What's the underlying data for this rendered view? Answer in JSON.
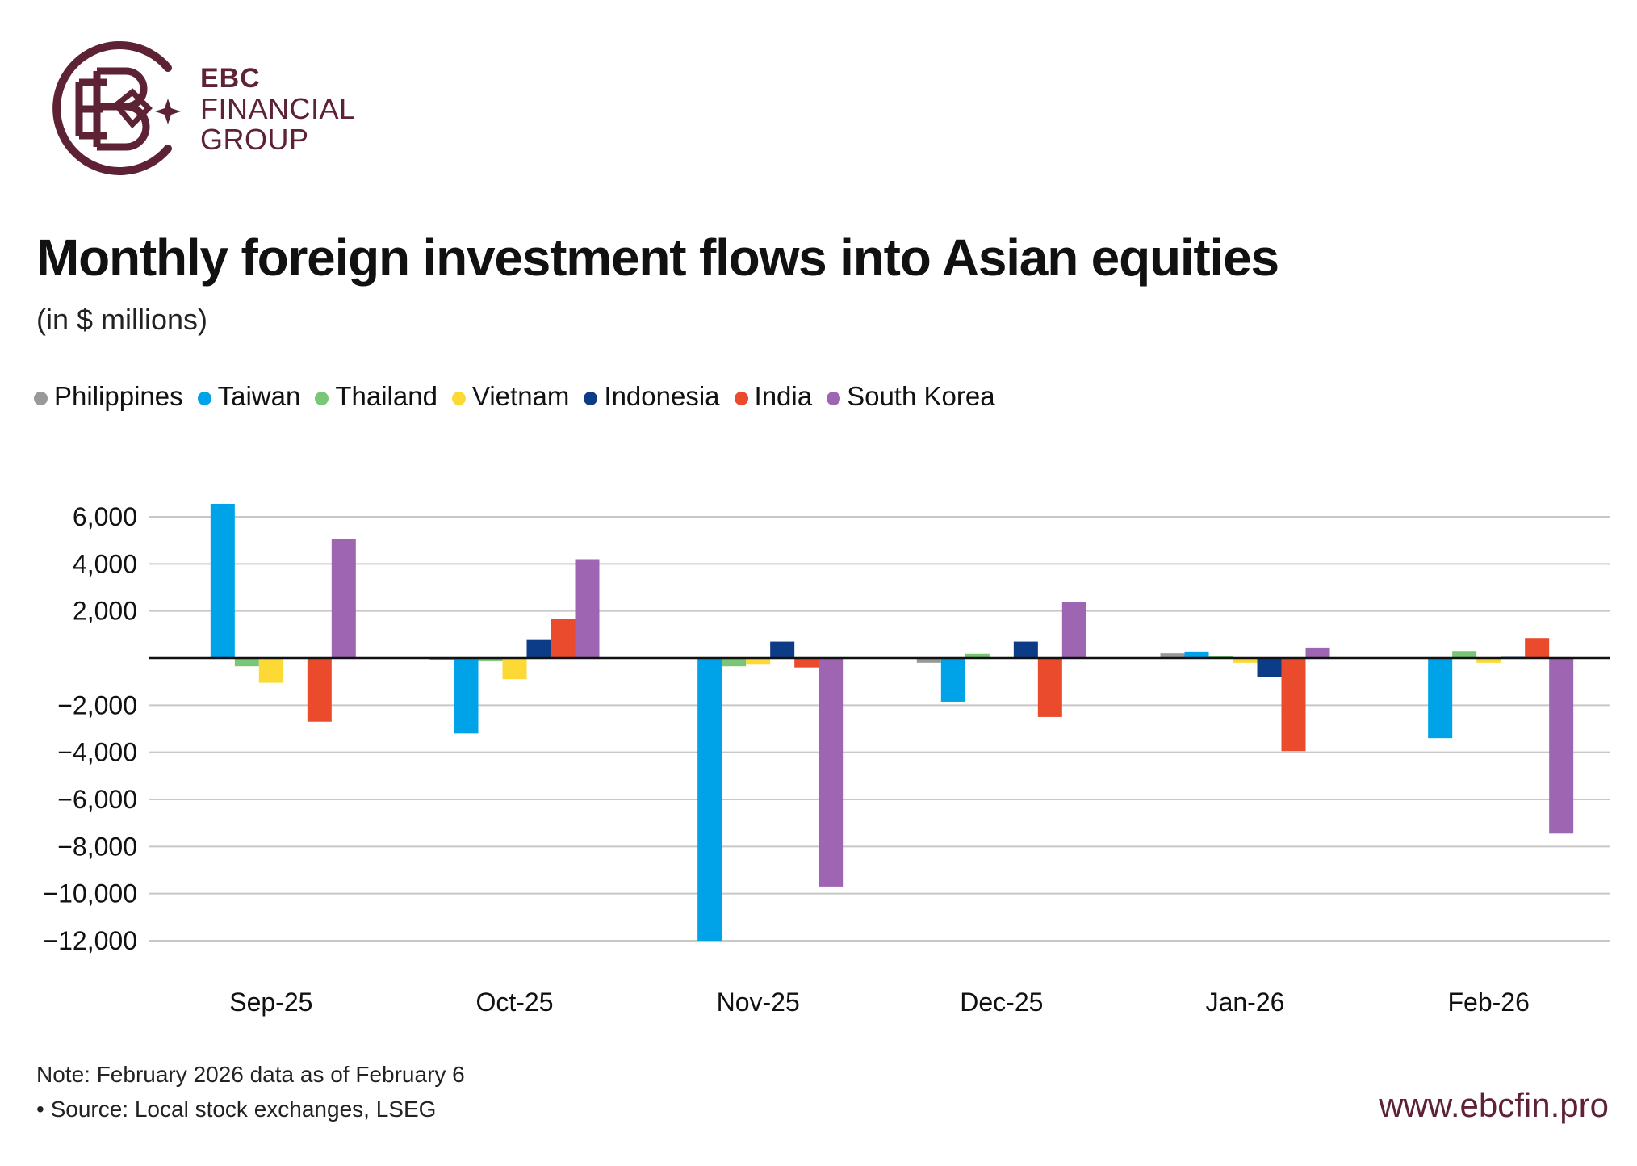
{
  "brand": {
    "line1": "EBC",
    "line2": "FINANCIAL",
    "line3": "GROUP",
    "color": "#5e2235",
    "logo_icon": "ebc-monogram-icon"
  },
  "title": "Monthly foreign investment flows into Asian equities",
  "subtitle": "(in $ millions)",
  "footer": {
    "note": "Note: February 2026 data as of February 6",
    "source": "• Source: Local stock exchanges, LSEG",
    "url": "www.ebcfin.pro"
  },
  "chart_data": {
    "type": "bar",
    "categories": [
      "Sep-25",
      "Oct-25",
      "Nov-25",
      "Dec-25",
      "Jan-26",
      "Feb-26"
    ],
    "series": [
      {
        "name": "Philippines",
        "color": "#999999",
        "values": [
          0,
          -50,
          0,
          -200,
          200,
          0
        ]
      },
      {
        "name": "Taiwan",
        "color": "#00a3e8",
        "values": [
          6550,
          -3200,
          -12000,
          -1850,
          280,
          -3400
        ]
      },
      {
        "name": "Thailand",
        "color": "#79c776",
        "values": [
          -350,
          -100,
          -350,
          180,
          100,
          300
        ]
      },
      {
        "name": "Vietnam",
        "color": "#fdd935",
        "values": [
          -1050,
          -900,
          -250,
          0,
          -200,
          -200
        ]
      },
      {
        "name": "Indonesia",
        "color": "#0c3c87",
        "values": [
          0,
          800,
          700,
          700,
          -800,
          50
        ]
      },
      {
        "name": "India",
        "color": "#e94b2c",
        "values": [
          -2700,
          1650,
          -400,
          -2500,
          -3950,
          850
        ]
      },
      {
        "name": "South Korea",
        "color": "#9e66b2",
        "values": [
          5050,
          4200,
          -9700,
          2400,
          450,
          -7450
        ]
      }
    ],
    "yticks": [
      "6,000",
      "4,000",
      "2,000",
      "",
      "−2,000",
      "−4,000",
      "−6,000",
      "−8,000",
      "−10,000",
      "−12,000"
    ],
    "ytick_values": [
      6000,
      4000,
      2000,
      0,
      -2000,
      -4000,
      -6000,
      -8000,
      -10000,
      -12000
    ],
    "ylim": [
      -12000,
      6000
    ],
    "grid": true,
    "legend_position": "top-left"
  }
}
